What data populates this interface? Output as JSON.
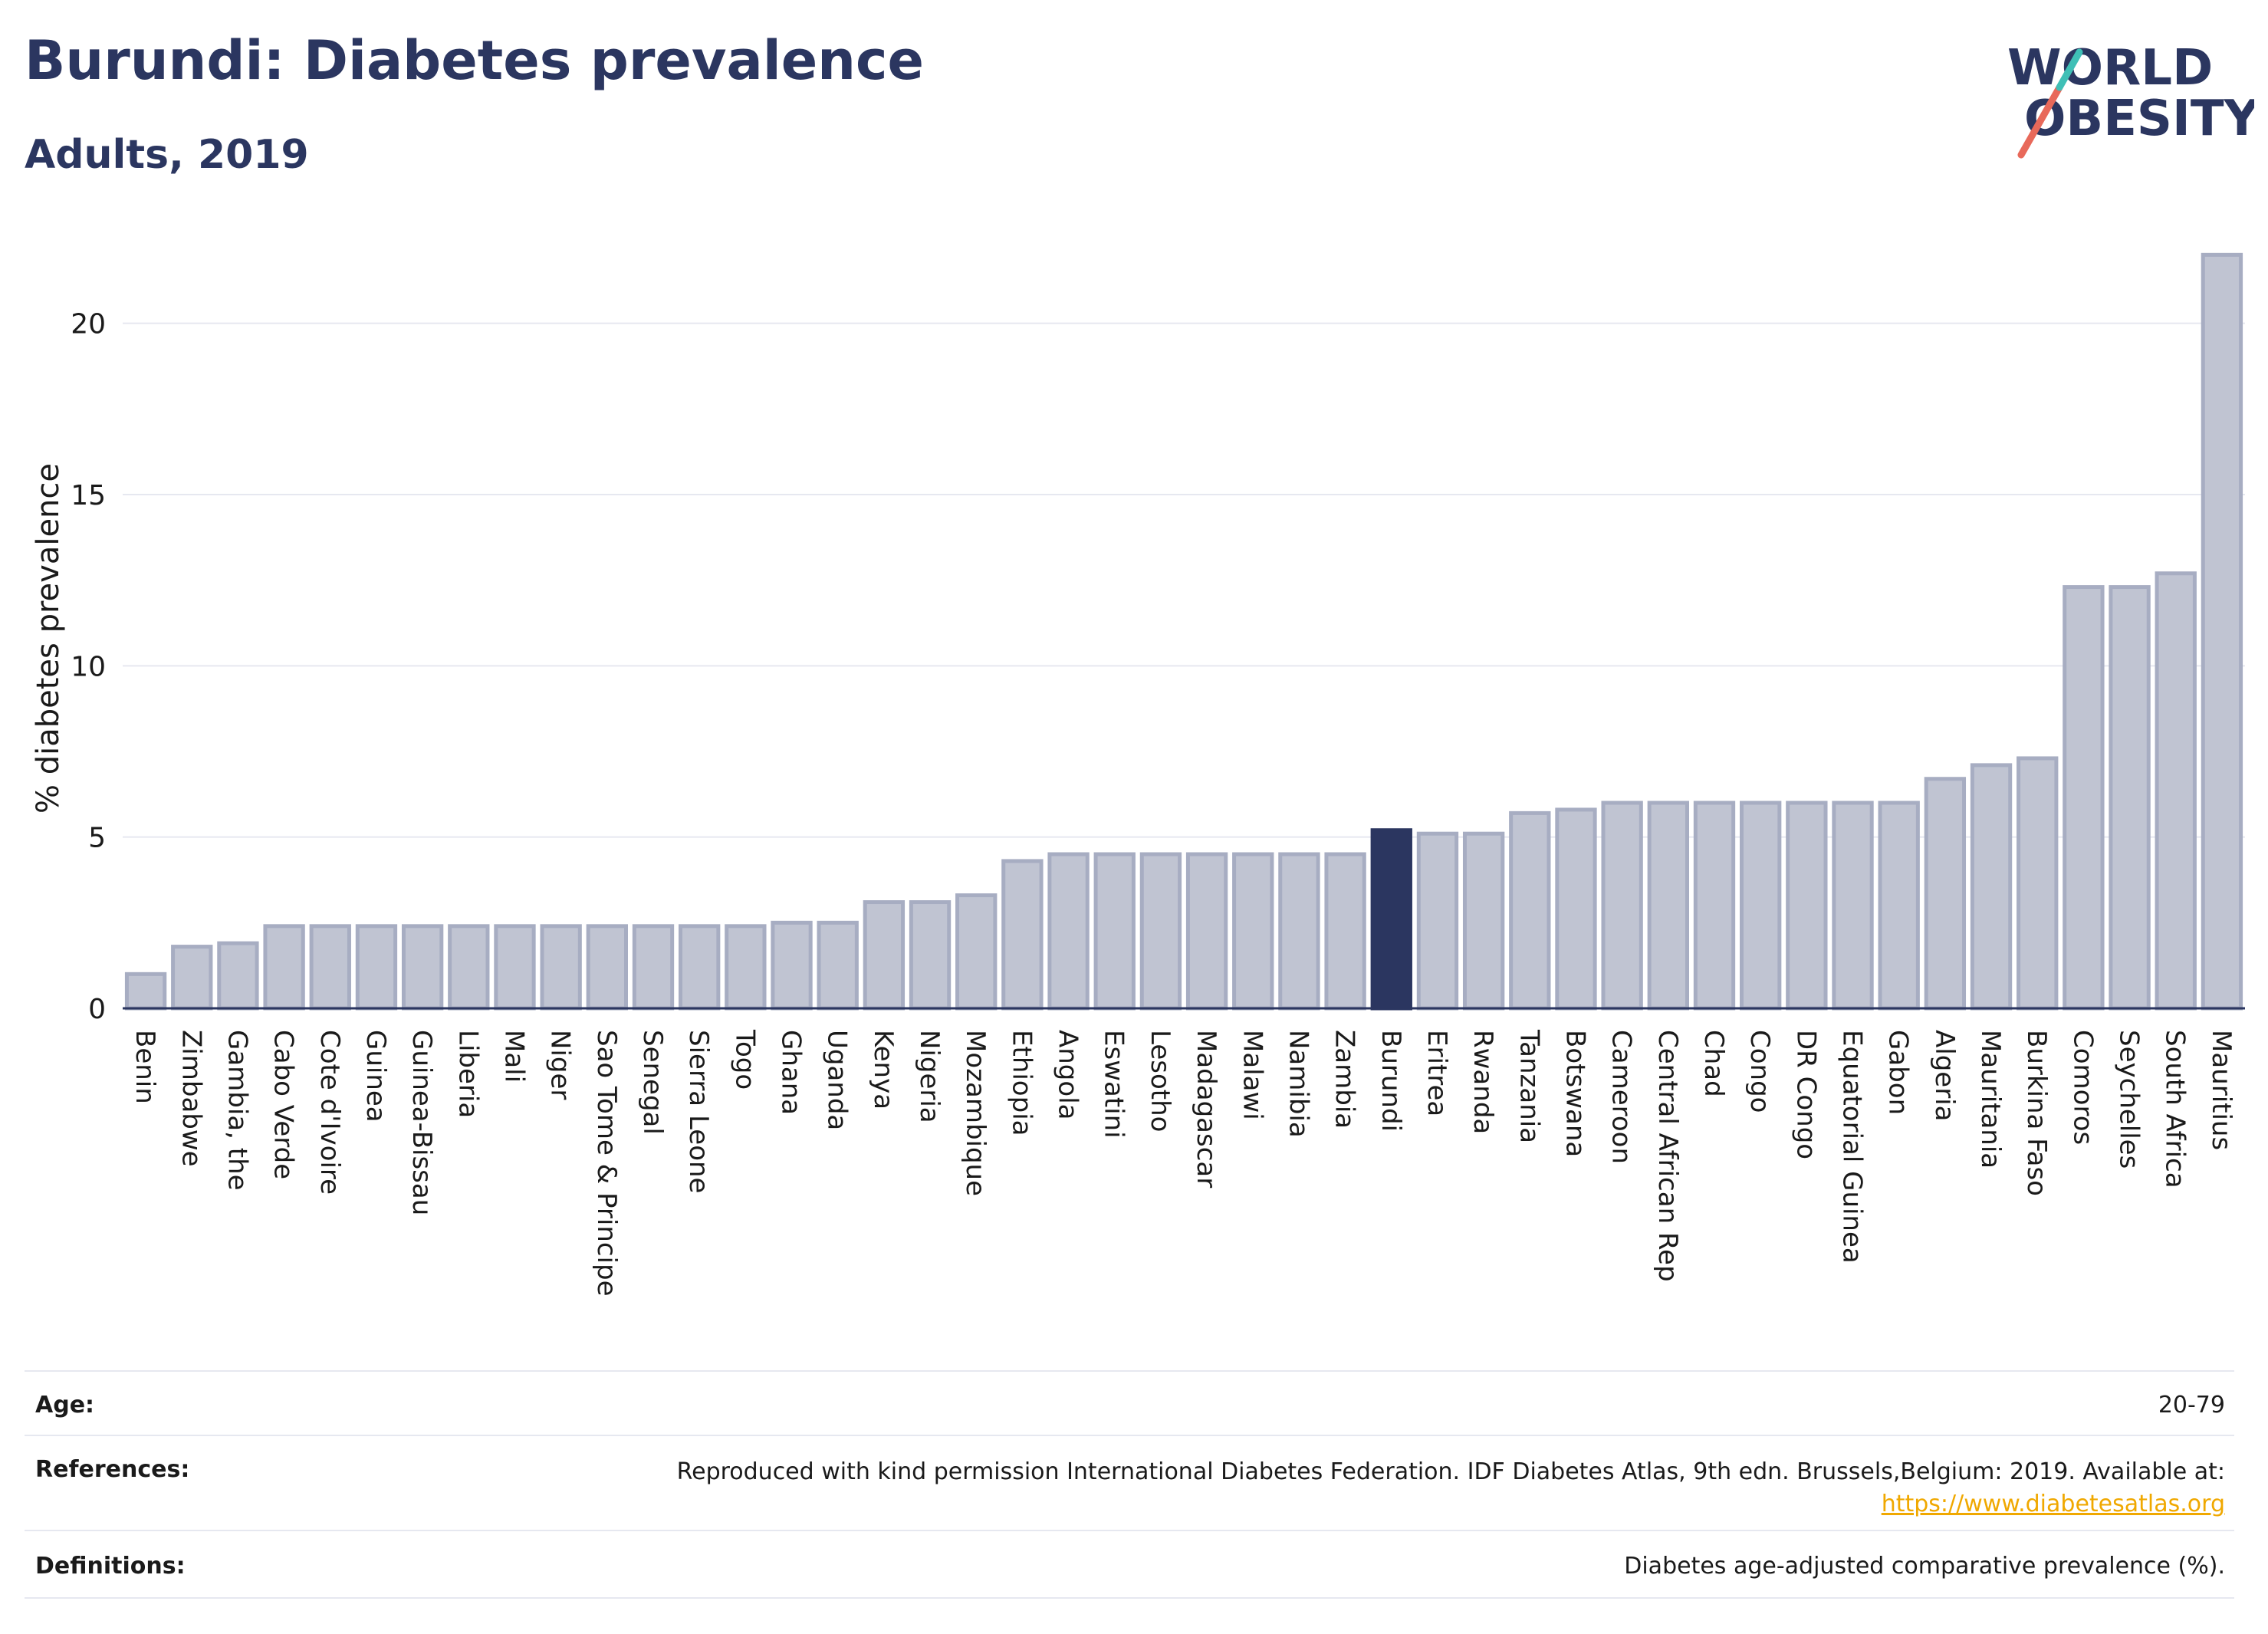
{
  "header": {
    "title": "Burundi: Diabetes prevalence",
    "subtitle": "Adults, 2019"
  },
  "logo": {
    "line1": "WORLD",
    "line2": "OBESITY",
    "text_color": "#2b3660",
    "slash_colors": [
      "#e8695a",
      "#3fbfb6"
    ]
  },
  "chart_data": {
    "type": "bar",
    "ylabel": "% diabetes prevalence",
    "ylim": [
      0,
      22.5
    ],
    "yticks": [
      0,
      5,
      10,
      15,
      20
    ],
    "grid": true,
    "highlight": "Burundi",
    "colors": {
      "bar": "#c0c4d2",
      "bar_edge": "#a7adc2",
      "highlight": "#2b3660"
    },
    "categories": [
      "Benin",
      "Zimbabwe",
      "Gambia, the",
      "Cabo Verde",
      "Cote d'Ivoire",
      "Guinea",
      "Guinea-Bissau",
      "Liberia",
      "Mali",
      "Niger",
      "Sao Tome & Principe",
      "Senegal",
      "Sierra Leone",
      "Togo",
      "Ghana",
      "Uganda",
      "Kenya",
      "Nigeria",
      "Mozambique",
      "Ethiopia",
      "Angola",
      "Eswatini",
      "Lesotho",
      "Madagascar",
      "Malawi",
      "Namibia",
      "Zambia",
      "Burundi",
      "Eritrea",
      "Rwanda",
      "Tanzania",
      "Botswana",
      "Cameroon",
      "Central African Rep",
      "Chad",
      "Congo",
      "DR Congo",
      "Equatorial Guinea",
      "Gabon",
      "Algeria",
      "Mauritania",
      "Burkina Faso",
      "Comoros",
      "Seychelles",
      "South Africa",
      "Mauritius"
    ],
    "values": [
      1.0,
      1.8,
      1.9,
      2.4,
      2.4,
      2.4,
      2.4,
      2.4,
      2.4,
      2.4,
      2.4,
      2.4,
      2.4,
      2.4,
      2.5,
      2.5,
      3.1,
      3.1,
      3.3,
      4.3,
      4.5,
      4.5,
      4.5,
      4.5,
      4.5,
      4.5,
      4.5,
      5.2,
      5.1,
      5.1,
      5.7,
      5.8,
      6.0,
      6.0,
      6.0,
      6.0,
      6.0,
      6.0,
      6.0,
      6.7,
      7.1,
      7.3,
      12.3,
      12.3,
      12.7,
      22.0
    ]
  },
  "meta": {
    "age_label": "Age:",
    "age_value": "20-79",
    "references_label": "References:",
    "references_text": "Reproduced with kind permission International Diabetes Federation. IDF Diabetes Atlas, 9th edn. Brussels,Belgium: 2019. Available at:",
    "references_link": "https://www.diabetesatlas.org",
    "definitions_label": "Definitions:",
    "definitions_value": "Diabetes age-adjusted comparative prevalence (%)."
  }
}
